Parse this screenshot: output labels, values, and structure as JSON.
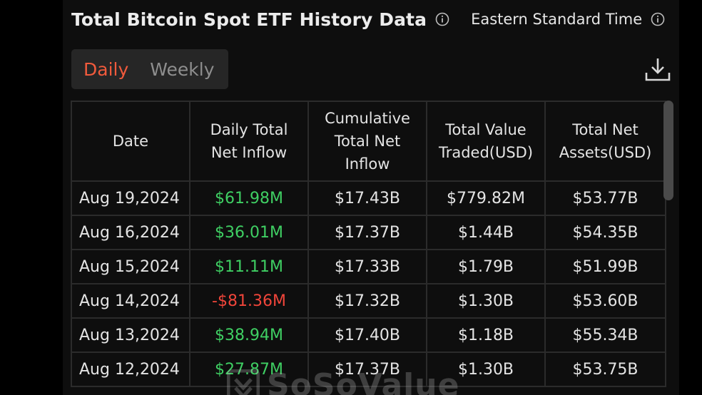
{
  "header": {
    "title": "Total Bitcoin Spot ETF History Data",
    "timezone": "Eastern Standard Time",
    "icons": [
      "info-icon",
      "info-icon",
      "download-icon"
    ]
  },
  "toggle": {
    "daily_label": "Daily",
    "weekly_label": "Weekly",
    "selected": "Daily"
  },
  "table": {
    "headers": {
      "date": "Date",
      "daily_net_inflow": "Daily Total Net Inflow",
      "cumulative_net_inflow": "Cumulative Total Net Inflow",
      "total_value_traded": "Total Value Traded(USD)",
      "total_net_assets": "Total Net Assets(USD)"
    },
    "rows": [
      {
        "date": "Aug 19,2024",
        "inflow": "$61.98M",
        "cumulative": "$17.43B",
        "traded": "$779.82M",
        "assets": "$53.77B"
      },
      {
        "date": "Aug 16,2024",
        "inflow": "$36.01M",
        "cumulative": "$17.37B",
        "traded": "$1.44B",
        "assets": "$54.35B"
      },
      {
        "date": "Aug 15,2024",
        "inflow": "$11.11M",
        "cumulative": "$17.33B",
        "traded": "$1.79B",
        "assets": "$51.99B"
      },
      {
        "date": "Aug 14,2024",
        "inflow": "-$81.36M",
        "cumulative": "$17.32B",
        "traded": "$1.30B",
        "assets": "$53.60B"
      },
      {
        "date": "Aug 13,2024",
        "inflow": "$38.94M",
        "cumulative": "$17.40B",
        "traded": "$1.18B",
        "assets": "$55.34B"
      },
      {
        "date": "Aug 12,2024",
        "inflow": "$27.87M",
        "cumulative": "$17.37B",
        "traded": "$1.30B",
        "assets": "$53.75B"
      }
    ]
  },
  "watermark": {
    "text": "SoSoValue"
  },
  "colors": {
    "accent": "#f05a3c",
    "positive": "#3fcf63",
    "negative": "#f0453a",
    "background": "#0e0e0e",
    "border": "#2b2b2b"
  }
}
